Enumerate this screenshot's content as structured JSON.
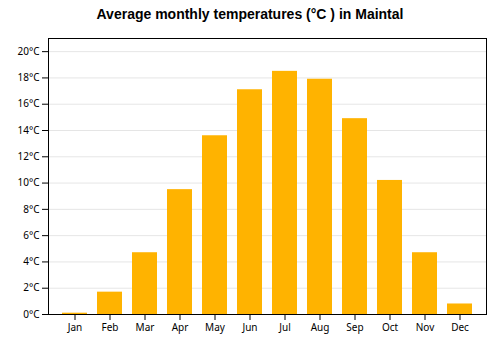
{
  "chart_data": {
    "type": "bar",
    "title": "Average monthly temperatures (°C ) in Maintal",
    "categories": [
      "Jan",
      "Feb",
      "Mar",
      "Apr",
      "May",
      "Jun",
      "Jul",
      "Aug",
      "Sep",
      "Oct",
      "Nov",
      "Dec"
    ],
    "values": [
      0.1,
      1.7,
      4.7,
      9.5,
      13.6,
      17.1,
      18.5,
      17.9,
      14.9,
      10.2,
      4.7,
      0.8
    ],
    "color": "#FFB300",
    "ylim": [
      0,
      21
    ],
    "yticks": [
      {
        "value": 0,
        "label": "0°C"
      },
      {
        "value": 2,
        "label": "2°C"
      },
      {
        "value": 4,
        "label": "4°C"
      },
      {
        "value": 6,
        "label": "6°C"
      },
      {
        "value": 8,
        "label": "8°C"
      },
      {
        "value": 10,
        "label": "10°C"
      },
      {
        "value": 12,
        "label": "12°C"
      },
      {
        "value": 14,
        "label": "14°C"
      },
      {
        "value": 16,
        "label": "16°C"
      },
      {
        "value": 18,
        "label": "18°C"
      },
      {
        "value": 20,
        "label": "20°C"
      }
    ],
    "grid": true
  }
}
